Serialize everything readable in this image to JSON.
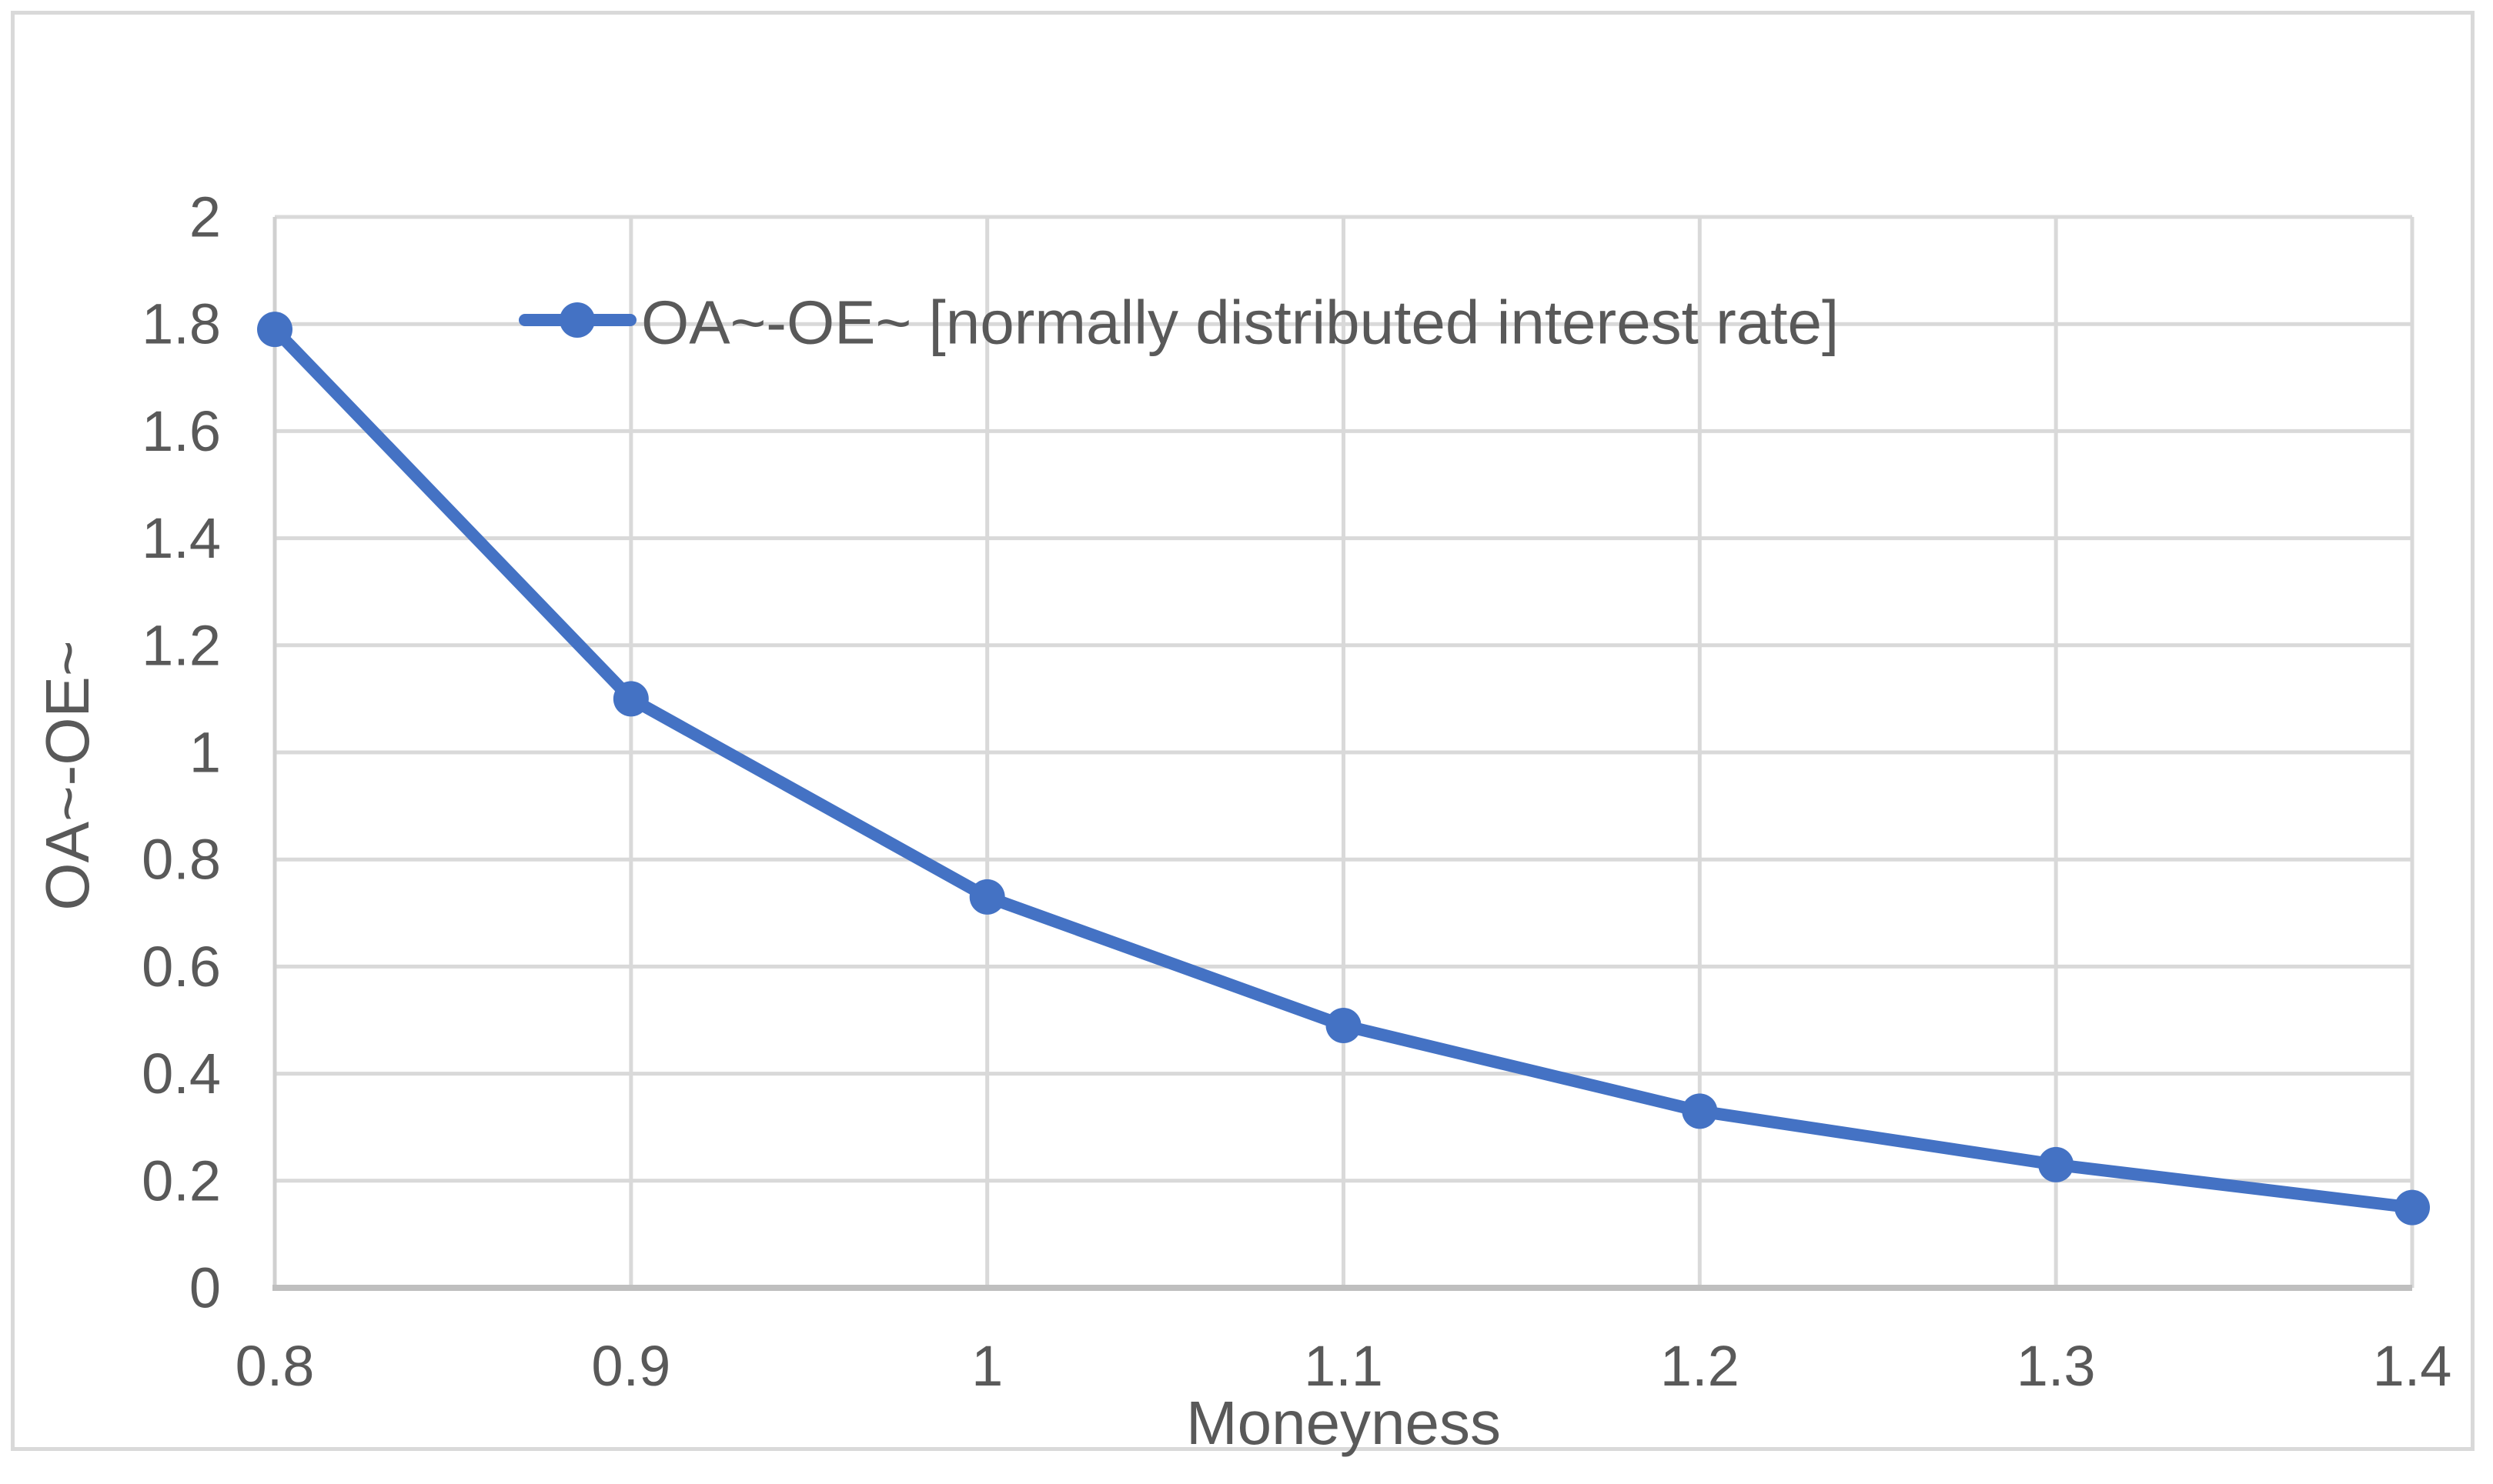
{
  "figure": {
    "background": "#ffffff",
    "frame_border_color": "#d9d9d9"
  },
  "chart_data": {
    "type": "line",
    "title": "",
    "x": [
      0.8,
      0.9,
      1.0,
      1.1,
      1.2,
      1.3,
      1.4
    ],
    "series": [
      {
        "name": "OA~-OE~ [normally distributed interest rate]",
        "values": [
          1.79,
          1.1,
          0.73,
          0.49,
          0.33,
          0.23,
          0.15
        ],
        "color": "#4472C4",
        "marker": "circle"
      }
    ],
    "xlabel": "Moneyness",
    "ylabel": "OA~-OE~",
    "xlim": [
      0.8,
      1.4
    ],
    "ylim": [
      0,
      2
    ],
    "xtick_values": [
      0.8,
      0.9,
      1.0,
      1.1,
      1.2,
      1.3,
      1.4
    ],
    "xtick_labels": [
      "0.8",
      "0.9",
      "1",
      "1.1",
      "1.2",
      "1.3",
      "1.4"
    ],
    "ytick_values": [
      0,
      0.2,
      0.4,
      0.6,
      0.8,
      1.0,
      1.2,
      1.4,
      1.6,
      1.8,
      2.0
    ],
    "ytick_labels": [
      "0",
      "0.2",
      "0.4",
      "0.6",
      "0.8",
      "1",
      "1.2",
      "1.4",
      "1.6",
      "1.8",
      "2"
    ],
    "grid": true,
    "legend_position": "inside-top-left",
    "colors": {
      "grid": "#d9d9d9",
      "x_axis_line": "#bfbfbf",
      "y_axis_line": "#d0d0d0",
      "text": "#595959"
    }
  }
}
